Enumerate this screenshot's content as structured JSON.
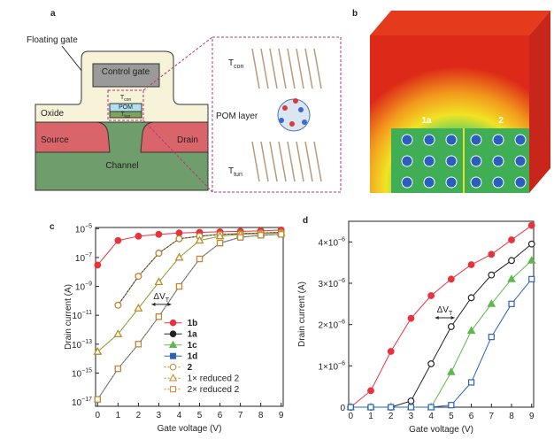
{
  "panel_a": {
    "letter": "a",
    "floating_gate": "Floating gate",
    "control_gate": "Control gate",
    "t_con": [
      "T",
      "con"
    ],
    "pom": "POM",
    "t_tun": [
      "T",
      "tun"
    ],
    "oxide": "Oxide",
    "source": "Source",
    "drain": "Drain",
    "channel": "Channel",
    "inset_t_con": [
      "T",
      "con"
    ],
    "pom_layer": "POM layer",
    "inset_t_tun": [
      "T",
      "tun"
    ]
  },
  "panel_b": {
    "letter": "b",
    "label_1a": "1a",
    "label_2": "2"
  },
  "chart_data": [
    {
      "type": "line",
      "panel": "c",
      "xlabel": "Gate voltage (V)",
      "ylabel": "Drain current (A)",
      "log_y": true,
      "x": [
        0,
        1,
        2,
        3,
        4,
        5,
        6,
        7,
        8,
        9
      ],
      "xlim": [
        -0.1,
        9.1
      ],
      "xticks": [
        0,
        1,
        2,
        3,
        4,
        5,
        6,
        7,
        8,
        9
      ],
      "ylim": [
        5e-18,
        1.2e-05
      ],
      "yticks": [
        {
          "value": 1e-05,
          "label": "10−5"
        },
        {
          "value": 1e-07,
          "label": "10−7"
        },
        {
          "value": 1e-09,
          "label": "10−9"
        },
        {
          "value": 1e-11,
          "label": "10−11"
        },
        {
          "value": 1e-13,
          "label": "10−13"
        },
        {
          "value": 1e-15,
          "label": "10−15"
        },
        {
          "value": 1e-17,
          "label": "10−17"
        }
      ],
      "annotation": [
        "ΔV",
        "T"
      ],
      "legend": "lower right",
      "series": [
        {
          "name": "1b",
          "color": "#e8323c",
          "marker": "circle",
          "filled": true,
          "values": [
            3e-08,
            1.5e-06,
            3e-06,
            4e-06,
            5e-06,
            5.5e-06,
            6e-06,
            6.5e-06,
            7e-06,
            8e-06
          ]
        },
        {
          "name": "1a",
          "color": "#222222",
          "marker": "circle",
          "filled": true,
          "values": [
            null,
            5e-11,
            5e-09,
            2e-07,
            2e-06,
            3e-06,
            4e-06,
            4.5e-06,
            5e-06,
            5.5e-06
          ]
        },
        {
          "name": "1c",
          "color": "#5cb84a",
          "marker": "triangle",
          "filled": true,
          "values": [
            3e-14,
            5e-13,
            3e-11,
            2e-09,
            1e-07,
            1.5e-06,
            3e-06,
            4e-06,
            4.5e-06,
            5e-06
          ]
        },
        {
          "name": "1d",
          "color": "#2b62b5",
          "marker": "square",
          "filled": true,
          "values": [
            1.5e-17,
            2e-15,
            1e-13,
            8e-12,
            1e-09,
            8e-08,
            1e-06,
            2.5e-06,
            3.5e-06,
            4e-06
          ]
        },
        {
          "name": "2",
          "color": "#c8862a",
          "marker": "circle",
          "filled": false,
          "dashed": true,
          "values": [
            null,
            5e-11,
            5e-09,
            2e-07,
            2e-06,
            3e-06,
            4e-06,
            4.5e-06,
            5e-06,
            5.5e-06
          ]
        },
        {
          "name": "1× reduced 2",
          "color": "#c8862a",
          "marker": "triangle",
          "filled": false,
          "dashed": true,
          "values": [
            3e-14,
            5e-13,
            3e-11,
            2e-09,
            1e-07,
            1.5e-06,
            3e-06,
            4e-06,
            4.5e-06,
            5e-06
          ]
        },
        {
          "name": "2× reduced 2",
          "color": "#c8862a",
          "marker": "square",
          "filled": false,
          "dashed": true,
          "values": [
            1.5e-17,
            2e-15,
            1e-13,
            8e-12,
            1e-09,
            8e-08,
            1e-06,
            2.5e-06,
            3.5e-06,
            4e-06
          ]
        }
      ]
    },
    {
      "type": "line",
      "panel": "d",
      "xlabel": "Gate voltage (V)",
      "ylabel": "Drain current (A)",
      "log_y": false,
      "x": [
        0,
        1,
        2,
        3,
        4,
        5,
        6,
        7,
        8,
        9
      ],
      "xlim": [
        -0.1,
        9.1
      ],
      "xticks": [
        0,
        1,
        2,
        3,
        4,
        5,
        6,
        7,
        8,
        9
      ],
      "ylim": [
        0,
        4.5e-06
      ],
      "yticks": [
        0,
        {
          "value": 1e-06,
          "label": "1×10−6"
        },
        {
          "value": 2e-06,
          "label": "2×10−6"
        },
        {
          "value": 3e-06,
          "label": "3×10−6"
        },
        {
          "value": 4e-06,
          "label": "4×10−6"
        }
      ],
      "annotation": [
        "ΔV",
        "T"
      ],
      "series": [
        {
          "name": "1b",
          "color": "#e8323c",
          "marker": "circle",
          "filled": true,
          "values": [
            0,
            4e-07,
            1.35e-06,
            2.15e-06,
            2.7e-06,
            3.1e-06,
            3.45e-06,
            3.7e-06,
            4.05e-06,
            4.4e-06
          ]
        },
        {
          "name": "1a",
          "color": "#222222",
          "marker": "circle",
          "filled": false,
          "values": [
            0,
            0,
            0,
            1.5e-07,
            1.05e-06,
            1.95e-06,
            2.65e-06,
            3.2e-06,
            3.55e-06,
            3.95e-06
          ]
        },
        {
          "name": "1c",
          "color": "#5cb84a",
          "marker": "triangle",
          "filled": true,
          "values": [
            0,
            0,
            0,
            0,
            0,
            8.5e-07,
            1.85e-06,
            2.5e-06,
            3.1e-06,
            3.55e-06
          ]
        },
        {
          "name": "1d",
          "color": "#2b62b5",
          "marker": "square",
          "filled": false,
          "values": [
            0,
            0,
            0,
            0,
            0,
            5e-08,
            6e-07,
            1.7e-06,
            2.5e-06,
            3.1e-06
          ]
        }
      ]
    }
  ]
}
